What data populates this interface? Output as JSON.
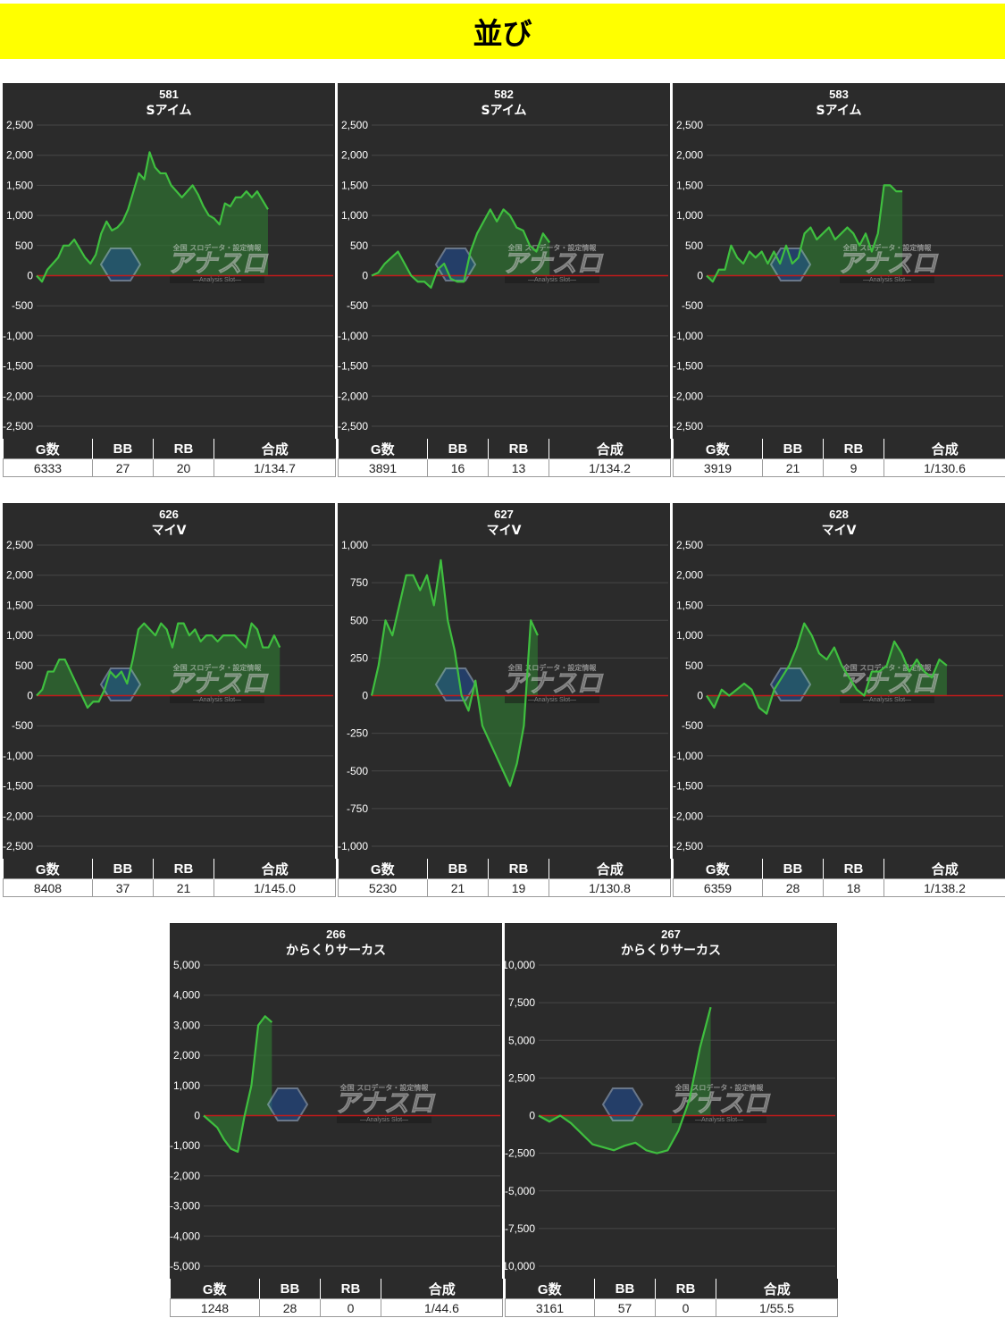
{
  "header": {
    "title": "並び"
  },
  "watermark": {
    "logo": "アナスロ",
    "sub": "—Analysis Slot—",
    "tagline": "全国 スロデータ・設定情報"
  },
  "colors": {
    "line": "#3fbf3f",
    "fill": "#2f6f32",
    "zero": "#c21b1b",
    "panel_bg": "#2b2b2b",
    "grid": "#474747"
  },
  "stats_header": {
    "games": "G数",
    "bb": "BB",
    "rb": "RB",
    "combined": "合成"
  },
  "chart_data": [
    {
      "type": "line",
      "number": "581",
      "title": "Sアイム",
      "ylim": [
        -2500,
        2500
      ],
      "yticks": [
        2500,
        2000,
        1500,
        1000,
        500,
        0,
        -500,
        -1000,
        -1500,
        -2000,
        -2500
      ],
      "yticklabels": [
        "2,500",
        "2,000",
        "1,500",
        "1,000",
        "500",
        "0",
        "-500",
        "-1,000",
        "-1,500",
        "-2,000",
        "-2,500"
      ],
      "x_end": 0.78,
      "y": [
        0,
        -100,
        100,
        200,
        300,
        500,
        500,
        600,
        450,
        300,
        200,
        350,
        700,
        900,
        750,
        800,
        900,
        1100,
        1400,
        1700,
        1600,
        2050,
        1800,
        1700,
        1700,
        1500,
        1400,
        1300,
        1400,
        1500,
        1350,
        1150,
        1000,
        950,
        850,
        1200,
        1150,
        1300,
        1300,
        1400,
        1300,
        1400,
        1250,
        1100
      ],
      "stats": {
        "games": "6333",
        "bb": "27",
        "rb": "20",
        "combined": "1/134.7"
      }
    },
    {
      "type": "line",
      "number": "582",
      "title": "Sアイム",
      "ylim": [
        -2500,
        2500
      ],
      "yticks": [
        2500,
        2000,
        1500,
        1000,
        500,
        0,
        -500,
        -1000,
        -1500,
        -2000,
        -2500
      ],
      "yticklabels": [
        "2,500",
        "2,000",
        "1,500",
        "1,000",
        "500",
        "0",
        "-500",
        "-1,000",
        "-1,500",
        "-2,000",
        "-2,500"
      ],
      "x_end": 0.6,
      "y": [
        0,
        50,
        200,
        300,
        400,
        200,
        0,
        -100,
        -100,
        -200,
        100,
        200,
        -50,
        -100,
        -100,
        400,
        700,
        900,
        1100,
        900,
        1100,
        1000,
        800,
        750,
        500,
        400,
        700,
        550
      ],
      "stats": {
        "games": "3891",
        "bb": "16",
        "rb": "13",
        "combined": "1/134.2"
      }
    },
    {
      "type": "line",
      "number": "583",
      "title": "Sアイム",
      "ylim": [
        -2500,
        2500
      ],
      "yticks": [
        2500,
        2000,
        1500,
        1000,
        500,
        0,
        -500,
        -1000,
        -1500,
        -2000,
        -2500
      ],
      "yticklabels": [
        "2,500",
        "2,000",
        "1,500",
        "1,000",
        "500",
        "0",
        "-500",
        "-1,000",
        "-1,500",
        "-2,000",
        "-2,500"
      ],
      "x_end": 0.66,
      "y": [
        0,
        -100,
        100,
        100,
        500,
        300,
        200,
        400,
        300,
        400,
        200,
        400,
        200,
        500,
        200,
        300,
        700,
        800,
        600,
        700,
        800,
        600,
        700,
        800,
        700,
        500,
        700,
        400,
        700,
        1500,
        1500,
        1400,
        1400
      ],
      "stats": {
        "games": "3919",
        "bb": "21",
        "rb": "9",
        "combined": "1/130.6"
      }
    },
    {
      "type": "line",
      "number": "626",
      "title": "マイV",
      "ylim": [
        -2500,
        2500
      ],
      "yticks": [
        2500,
        2000,
        1500,
        1000,
        500,
        0,
        -500,
        -1000,
        -1500,
        -2000,
        -2500
      ],
      "yticklabels": [
        "2,500",
        "2,000",
        "1,500",
        "1,000",
        "500",
        "0",
        "-500",
        "-1,000",
        "-1,500",
        "-2,000",
        "-2,500"
      ],
      "x_end": 0.82,
      "y": [
        0,
        100,
        400,
        400,
        600,
        600,
        400,
        200,
        0,
        -200,
        -100,
        -100,
        100,
        400,
        300,
        400,
        200,
        600,
        1100,
        1200,
        1100,
        1000,
        1200,
        1100,
        800,
        1200,
        1200,
        1000,
        1100,
        900,
        1000,
        1000,
        900,
        1000,
        1000,
        1000,
        900,
        800,
        1200,
        1100,
        800,
        800,
        1000,
        800
      ],
      "stats": {
        "games": "8408",
        "bb": "37",
        "rb": "21",
        "combined": "1/145.0"
      }
    },
    {
      "type": "line",
      "number": "627",
      "title": "マイV",
      "ylim": [
        -1000,
        1000
      ],
      "yticks": [
        1000,
        750,
        500,
        250,
        0,
        -250,
        -500,
        -750,
        -1000
      ],
      "yticklabels": [
        "1,000",
        "750",
        "500",
        "250",
        "0",
        "-250",
        "-500",
        "-750",
        "-1,000"
      ],
      "x_end": 0.56,
      "y": [
        0,
        200,
        500,
        400,
        600,
        800,
        800,
        700,
        800,
        600,
        900,
        500,
        300,
        0,
        -100,
        100,
        -200,
        -300,
        -400,
        -500,
        -600,
        -450,
        -200,
        500,
        400
      ],
      "stats": {
        "games": "5230",
        "bb": "21",
        "rb": "19",
        "combined": "1/130.8"
      }
    },
    {
      "type": "line",
      "number": "628",
      "title": "マイV",
      "ylim": [
        -2500,
        2500
      ],
      "yticks": [
        2500,
        2000,
        1500,
        1000,
        500,
        0,
        -500,
        -1000,
        -1500,
        -2000,
        -2500
      ],
      "yticklabels": [
        "2,500",
        "2,000",
        "1,500",
        "1,000",
        "500",
        "0",
        "-500",
        "-1,000",
        "-1,500",
        "-2,000",
        "-2,500"
      ],
      "x_end": 0.81,
      "y": [
        0,
        -200,
        100,
        0,
        100,
        200,
        100,
        -200,
        -300,
        100,
        300,
        500,
        800,
        1200,
        1000,
        700,
        600,
        800,
        500,
        300,
        100,
        0,
        400,
        400,
        500,
        900,
        700,
        400,
        600,
        400,
        300,
        600,
        500
      ],
      "stats": {
        "games": "6359",
        "bb": "28",
        "rb": "18",
        "combined": "1/138.2"
      }
    },
    {
      "type": "line",
      "number": "266",
      "title": "からくりサーカス",
      "ylim": [
        -5000,
        5000
      ],
      "yticks": [
        5000,
        4000,
        3000,
        2000,
        1000,
        0,
        -1000,
        -2000,
        -3000,
        -4000,
        -5000
      ],
      "yticklabels": [
        "5,000",
        "4,000",
        "3,000",
        "2,000",
        "1,000",
        "0",
        "-1,000",
        "-2,000",
        "-3,000",
        "-4,000",
        "-5,000"
      ],
      "x_end": 0.23,
      "y": [
        0,
        -200,
        -400,
        -800,
        -1100,
        -1200,
        0,
        1000,
        3000,
        3300,
        3100
      ],
      "stats": {
        "games": "1248",
        "bb": "28",
        "rb": "0",
        "combined": "1/44.6"
      }
    },
    {
      "type": "line",
      "number": "267",
      "title": "からくりサーカス",
      "ylim": [
        -10000,
        10000
      ],
      "yticks": [
        10000,
        7500,
        5000,
        2500,
        0,
        -2500,
        -5000,
        -7500,
        -10000
      ],
      "yticklabels": [
        "10,000",
        "7,500",
        "5,000",
        "2,500",
        "0",
        "-2,500",
        "-5,000",
        "-7,500",
        "-10,000"
      ],
      "x_end": 0.58,
      "y": [
        0,
        -400,
        0,
        -500,
        -1200,
        -1900,
        -2100,
        -2300,
        -2000,
        -1800,
        -2300,
        -2500,
        -2300,
        -1000,
        1000,
        4500,
        7200
      ],
      "stats": {
        "games": "3161",
        "bb": "57",
        "rb": "0",
        "combined": "1/55.5"
      }
    }
  ]
}
